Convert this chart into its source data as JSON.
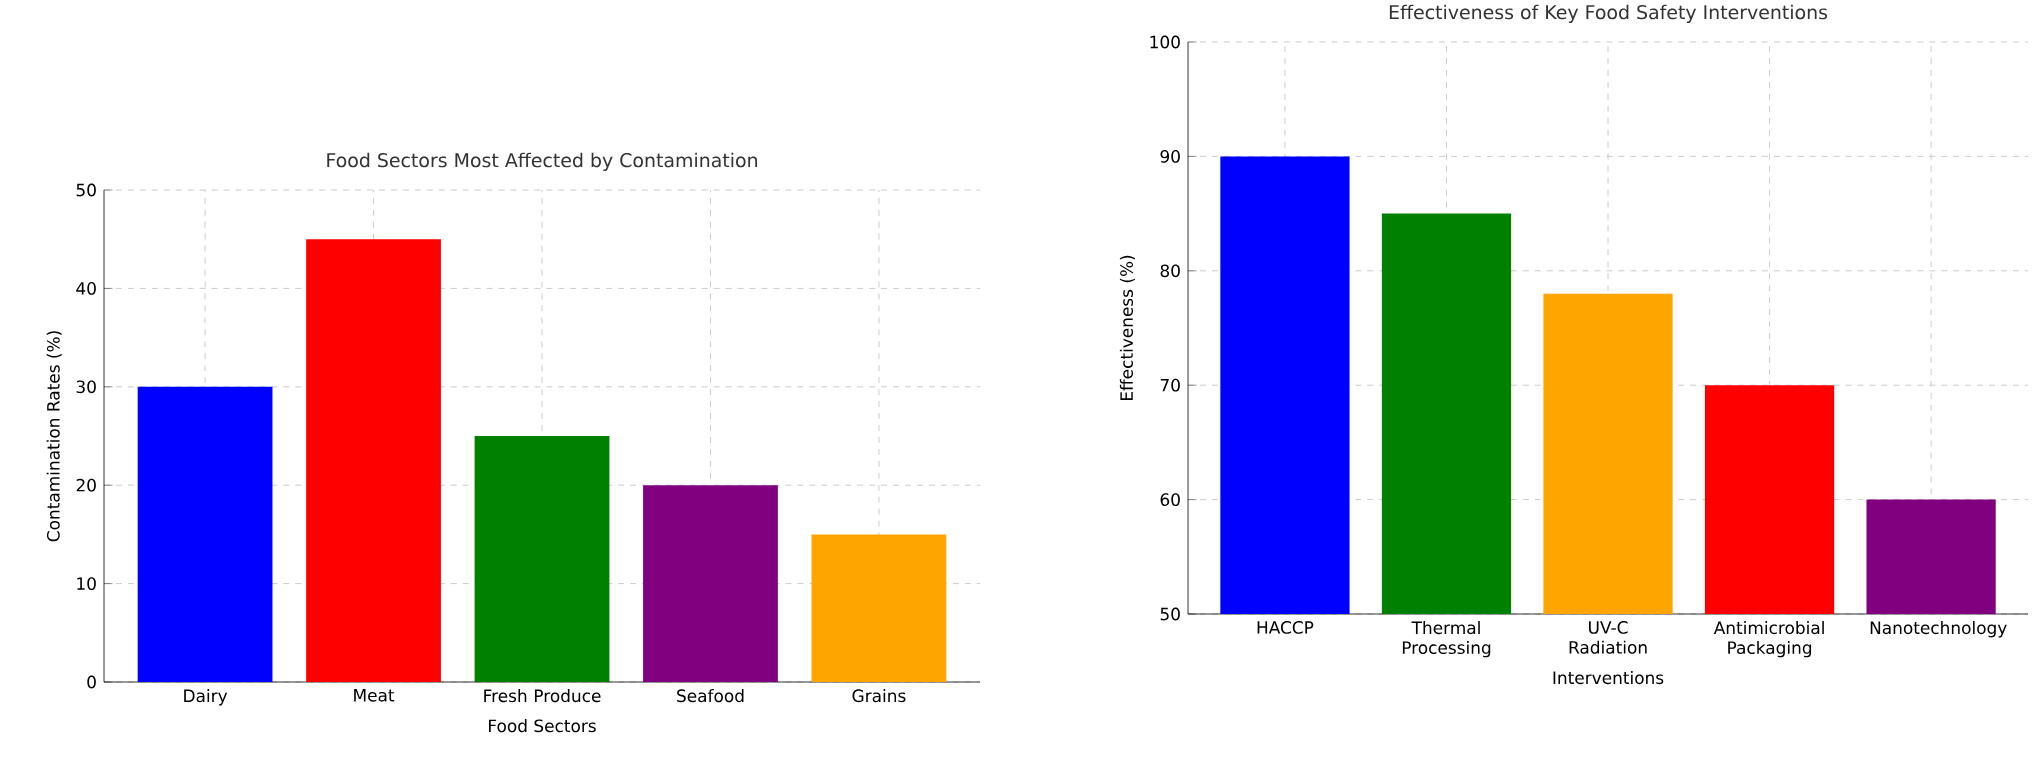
{
  "chart_data": [
    {
      "type": "bar",
      "title": "Food Sectors Most Affected by Contamination",
      "xlabel": "Food Sectors",
      "ylabel": "Contamination Rates (%)",
      "categories": [
        "Dairy",
        "Meat",
        "Fresh Produce",
        "Seafood",
        "Grains"
      ],
      "values": [
        30,
        45,
        25,
        20,
        15
      ],
      "colors": [
        "#0000ff",
        "#ff0000",
        "#008000",
        "#800080",
        "#ffa500"
      ],
      "ylim": [
        0,
        50
      ],
      "yticks": [
        0,
        10,
        20,
        30,
        40,
        50
      ],
      "grid": true
    },
    {
      "type": "bar",
      "title": "Effectiveness of Key Food Safety Interventions",
      "xlabel": "Interventions",
      "ylabel": "Effectiveness (%)",
      "categories": [
        "HACCP",
        "Thermal Processing",
        "UV-C Radiation",
        "Antimicrobial Packaging",
        "Nanotechnology"
      ],
      "values": [
        90,
        85,
        78,
        70,
        60
      ],
      "colors": [
        "#0000ff",
        "#008000",
        "#ffa500",
        "#ff0000",
        "#800080"
      ],
      "ylim": [
        50,
        100
      ],
      "yticks": [
        50,
        60,
        70,
        80,
        90,
        100
      ],
      "grid": true
    }
  ]
}
